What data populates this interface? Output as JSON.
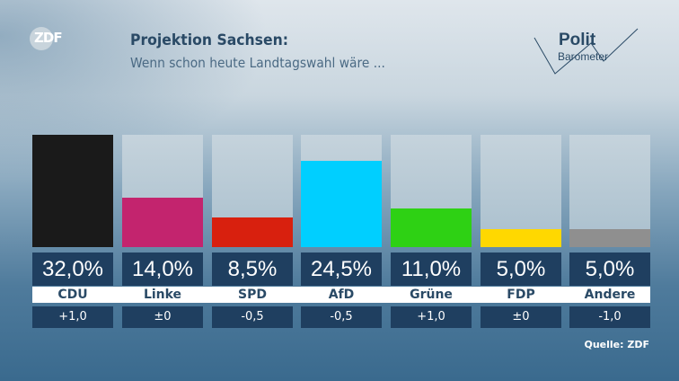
{
  "header": {
    "logo": "ZDF",
    "title": "Projektion Sachsen:",
    "subtitle": "Wenn schon heute Landtagswahl wäre ...",
    "brand_line1": "Polit",
    "brand_line2": "Barometer"
  },
  "chart_data": {
    "type": "bar",
    "title": "Projektion Sachsen:",
    "subtitle": "Wenn schon heute Landtagswahl wäre ...",
    "categories": [
      "CDU",
      "Linke",
      "SPD",
      "AfD",
      "Grüne",
      "FDP",
      "Andere"
    ],
    "values": [
      32.0,
      14.0,
      8.5,
      24.5,
      11.0,
      5.0,
      5.0
    ],
    "value_labels": [
      "32,0%",
      "14,0%",
      "8,5%",
      "24,5%",
      "11,0%",
      "5,0%",
      "5,0%"
    ],
    "changes": [
      "+1,0",
      "±0",
      "-0,5",
      "-0,5",
      "+1,0",
      "±0",
      "-1,0"
    ],
    "colors": [
      "#1a1a1a",
      "#c3246e",
      "#d8200e",
      "#00cfff",
      "#2ed114",
      "#ffd800",
      "#8f8f8f"
    ],
    "ylim": [
      0,
      32
    ],
    "grid": false
  },
  "source": "Quelle: ZDF"
}
